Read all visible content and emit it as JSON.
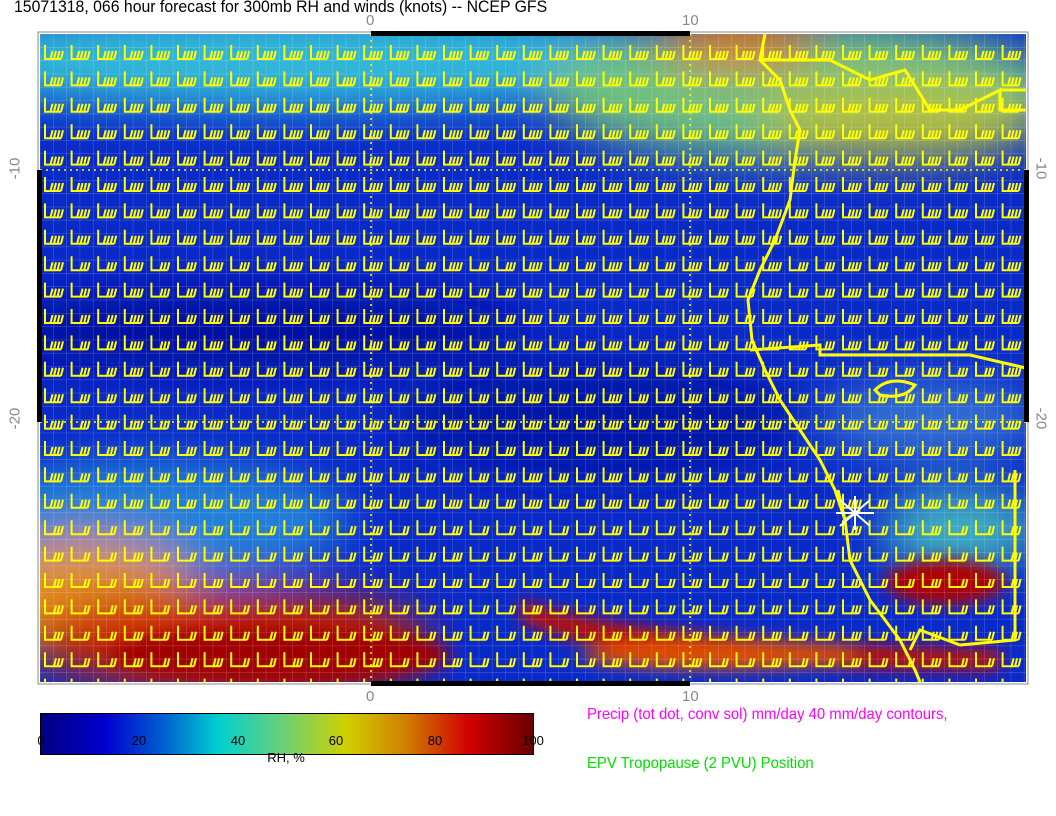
{
  "title": "15071318, 066 hour forecast for 300mb RH and winds (knots) -- NCEP GFS",
  "axes": {
    "top_ticks": [
      "0",
      "10"
    ],
    "bottom_ticks": [
      "0",
      "10"
    ],
    "left_ticks": [
      "-10",
      "-20"
    ],
    "right_ticks": [
      "-10",
      "-20"
    ]
  },
  "colorbar": {
    "ticks": [
      "0",
      "20",
      "40",
      "60",
      "80",
      "100"
    ],
    "label": "RH, %",
    "range": [
      0,
      100
    ],
    "colors": [
      "#00007f",
      "#0000d0",
      "#00d0d0",
      "#d0d000",
      "#d00000",
      "#6a0000"
    ]
  },
  "legend": {
    "precip": "Precip (tot dot, conv sol) mm/day 40 mm/day contours,",
    "tropopause": "EPV Tropopause (2 PVU) Position"
  },
  "colors": {
    "barbs": "#ffff00",
    "coast": "#ffff00",
    "precip": "#ff00ff",
    "tropopause": "#00e000"
  }
}
